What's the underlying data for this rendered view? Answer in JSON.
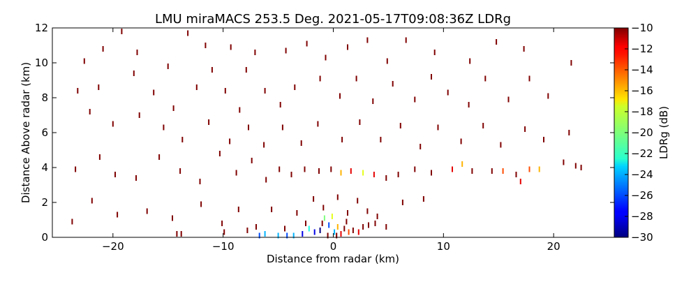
{
  "chart_data": {
    "type": "scatter",
    "title": "LMU miraMACS 253.5 Deg. 2021-05-17T09:08:36Z  LDRg",
    "xlabel": "Distance from radar (km)",
    "ylabel": "Distance Above radar  (km)",
    "xlim": [
      -25.5,
      25.5
    ],
    "ylim": [
      0,
      12
    ],
    "xticks": [
      -20,
      -10,
      0,
      10,
      20
    ],
    "xtick_labels": [
      "−20",
      "−10",
      "0",
      "10",
      "20"
    ],
    "yticks": [
      0,
      2,
      4,
      6,
      8,
      10,
      12
    ],
    "ytick_labels": [
      "0",
      "2",
      "4",
      "6",
      "8",
      "10",
      "12"
    ],
    "grid": false,
    "colorbar": {
      "label": "LDRg (dB)",
      "range": [
        -30,
        -10
      ],
      "ticks": [
        -30,
        -28,
        -26,
        -24,
        -22,
        -20,
        -18,
        -16,
        -14,
        -12,
        -10
      ],
      "tick_labels": [
        "−30",
        "−28",
        "−26",
        "−24",
        "−22",
        "−20",
        "−18",
        "−16",
        "−14",
        "−12",
        "−10"
      ],
      "colormap": "jet"
    },
    "points": [
      {
        "x": -19.2,
        "y": 11.8,
        "v": -10
      },
      {
        "x": -20.9,
        "y": 10.8,
        "v": -10
      },
      {
        "x": -22.6,
        "y": 10.1,
        "v": -10
      },
      {
        "x": -17.8,
        "y": 10.6,
        "v": -10
      },
      {
        "x": -15.0,
        "y": 9.8,
        "v": -10
      },
      {
        "x": -13.2,
        "y": 11.7,
        "v": -10
      },
      {
        "x": -11.6,
        "y": 11.0,
        "v": -10
      },
      {
        "x": -9.3,
        "y": 10.9,
        "v": -10
      },
      {
        "x": -7.1,
        "y": 10.6,
        "v": -10
      },
      {
        "x": -4.3,
        "y": 10.7,
        "v": -10
      },
      {
        "x": -2.4,
        "y": 11.1,
        "v": -10
      },
      {
        "x": -0.7,
        "y": 10.3,
        "v": -10
      },
      {
        "x": 1.3,
        "y": 10.9,
        "v": -10
      },
      {
        "x": 3.1,
        "y": 11.3,
        "v": -10
      },
      {
        "x": 4.9,
        "y": 10.1,
        "v": -10
      },
      {
        "x": 6.6,
        "y": 11.3,
        "v": -10
      },
      {
        "x": 9.2,
        "y": 10.6,
        "v": -10
      },
      {
        "x": 12.4,
        "y": 10.1,
        "v": -10
      },
      {
        "x": 14.8,
        "y": 11.2,
        "v": -10
      },
      {
        "x": 17.3,
        "y": 10.8,
        "v": -10
      },
      {
        "x": 21.6,
        "y": 10.0,
        "v": -10
      },
      {
        "x": -23.2,
        "y": 8.4,
        "v": -10
      },
      {
        "x": -21.3,
        "y": 8.6,
        "v": -10
      },
      {
        "x": -18.1,
        "y": 9.4,
        "v": -10
      },
      {
        "x": -16.3,
        "y": 8.3,
        "v": -10
      },
      {
        "x": -14.5,
        "y": 7.4,
        "v": -10
      },
      {
        "x": -12.4,
        "y": 8.6,
        "v": -10
      },
      {
        "x": -11.0,
        "y": 9.6,
        "v": -10
      },
      {
        "x": -9.8,
        "y": 8.4,
        "v": -10
      },
      {
        "x": -8.5,
        "y": 7.3,
        "v": -10
      },
      {
        "x": -7.9,
        "y": 9.6,
        "v": -10
      },
      {
        "x": -6.2,
        "y": 8.4,
        "v": -10
      },
      {
        "x": -4.8,
        "y": 7.6,
        "v": -10
      },
      {
        "x": -3.5,
        "y": 8.6,
        "v": -10
      },
      {
        "x": -1.2,
        "y": 9.1,
        "v": -10
      },
      {
        "x": 0.6,
        "y": 8.1,
        "v": -10
      },
      {
        "x": 2.1,
        "y": 9.1,
        "v": -10
      },
      {
        "x": 3.6,
        "y": 7.8,
        "v": -10
      },
      {
        "x": 5.4,
        "y": 8.8,
        "v": -10
      },
      {
        "x": 7.4,
        "y": 7.9,
        "v": -10
      },
      {
        "x": 8.9,
        "y": 9.2,
        "v": -10
      },
      {
        "x": 10.4,
        "y": 8.3,
        "v": -10
      },
      {
        "x": 12.3,
        "y": 7.6,
        "v": -10
      },
      {
        "x": 13.8,
        "y": 9.1,
        "v": -10
      },
      {
        "x": 15.9,
        "y": 7.9,
        "v": -10
      },
      {
        "x": 17.8,
        "y": 9.1,
        "v": -10
      },
      {
        "x": 19.5,
        "y": 8.1,
        "v": -10
      },
      {
        "x": -22.1,
        "y": 7.2,
        "v": -10
      },
      {
        "x": -20.0,
        "y": 6.5,
        "v": -10
      },
      {
        "x": -17.6,
        "y": 7.0,
        "v": -10
      },
      {
        "x": -15.4,
        "y": 6.3,
        "v": -10
      },
      {
        "x": -13.7,
        "y": 5.6,
        "v": -10
      },
      {
        "x": -11.3,
        "y": 6.6,
        "v": -10
      },
      {
        "x": -9.4,
        "y": 5.5,
        "v": -10
      },
      {
        "x": -7.7,
        "y": 6.3,
        "v": -10
      },
      {
        "x": -6.3,
        "y": 5.3,
        "v": -10
      },
      {
        "x": -4.6,
        "y": 6.3,
        "v": -10
      },
      {
        "x": -2.9,
        "y": 5.4,
        "v": -10
      },
      {
        "x": -1.4,
        "y": 6.5,
        "v": -10
      },
      {
        "x": 0.8,
        "y": 5.6,
        "v": -10
      },
      {
        "x": 2.4,
        "y": 6.6,
        "v": -10
      },
      {
        "x": 4.3,
        "y": 5.6,
        "v": -10
      },
      {
        "x": 6.1,
        "y": 6.4,
        "v": -10
      },
      {
        "x": 7.9,
        "y": 5.2,
        "v": -10
      },
      {
        "x": 9.5,
        "y": 6.3,
        "v": -10
      },
      {
        "x": 11.6,
        "y": 5.5,
        "v": -10
      },
      {
        "x": 13.6,
        "y": 6.4,
        "v": -10
      },
      {
        "x": 15.2,
        "y": 5.3,
        "v": -10
      },
      {
        "x": 17.4,
        "y": 6.2,
        "v": -10
      },
      {
        "x": 19.1,
        "y": 5.6,
        "v": -10
      },
      {
        "x": 21.4,
        "y": 6.0,
        "v": -10
      },
      {
        "x": -23.4,
        "y": 3.9,
        "v": -10
      },
      {
        "x": -21.2,
        "y": 4.6,
        "v": -10
      },
      {
        "x": -19.8,
        "y": 3.6,
        "v": -10
      },
      {
        "x": -17.9,
        "y": 3.4,
        "v": -10
      },
      {
        "x": -15.8,
        "y": 4.6,
        "v": -10
      },
      {
        "x": -13.9,
        "y": 3.8,
        "v": -10
      },
      {
        "x": -12.1,
        "y": 3.2,
        "v": -10
      },
      {
        "x": -10.3,
        "y": 4.8,
        "v": -10
      },
      {
        "x": -8.8,
        "y": 3.7,
        "v": -10
      },
      {
        "x": -7.4,
        "y": 4.4,
        "v": -10
      },
      {
        "x": -6.1,
        "y": 3.3,
        "v": -10
      },
      {
        "x": -4.9,
        "y": 3.9,
        "v": -10
      },
      {
        "x": -3.8,
        "y": 3.6,
        "v": -10
      },
      {
        "x": -2.6,
        "y": 3.9,
        "v": -10
      },
      {
        "x": -1.3,
        "y": 3.8,
        "v": -10
      },
      {
        "x": -0.2,
        "y": 3.9,
        "v": -10
      },
      {
        "x": 0.7,
        "y": 3.7,
        "v": -16
      },
      {
        "x": 1.6,
        "y": 3.8,
        "v": -12
      },
      {
        "x": 2.7,
        "y": 3.7,
        "v": -18
      },
      {
        "x": 3.7,
        "y": 3.6,
        "v": -12
      },
      {
        "x": 4.8,
        "y": 3.4,
        "v": -10
      },
      {
        "x": 5.9,
        "y": 3.6,
        "v": -10
      },
      {
        "x": 7.4,
        "y": 3.9,
        "v": -10
      },
      {
        "x": 8.9,
        "y": 3.7,
        "v": -10
      },
      {
        "x": 10.8,
        "y": 3.9,
        "v": -12
      },
      {
        "x": 11.7,
        "y": 4.2,
        "v": -16
      },
      {
        "x": 12.6,
        "y": 3.8,
        "v": -10
      },
      {
        "x": 14.4,
        "y": 3.8,
        "v": -10
      },
      {
        "x": 15.4,
        "y": 3.8,
        "v": -14
      },
      {
        "x": 16.6,
        "y": 3.6,
        "v": -10
      },
      {
        "x": 17.0,
        "y": 3.2,
        "v": -12
      },
      {
        "x": 17.8,
        "y": 3.9,
        "v": -14
      },
      {
        "x": 18.7,
        "y": 3.9,
        "v": -16
      },
      {
        "x": 20.9,
        "y": 4.3,
        "v": -10
      },
      {
        "x": 22.0,
        "y": 4.1,
        "v": -10
      },
      {
        "x": 22.5,
        "y": 4.0,
        "v": -10
      },
      {
        "x": -23.7,
        "y": 0.9,
        "v": -10
      },
      {
        "x": -21.9,
        "y": 2.1,
        "v": -10
      },
      {
        "x": -19.6,
        "y": 1.3,
        "v": -10
      },
      {
        "x": -16.9,
        "y": 1.5,
        "v": -10
      },
      {
        "x": -14.6,
        "y": 1.1,
        "v": -10
      },
      {
        "x": -12.0,
        "y": 1.9,
        "v": -10
      },
      {
        "x": -10.1,
        "y": 0.8,
        "v": -10
      },
      {
        "x": -8.6,
        "y": 1.6,
        "v": -10
      },
      {
        "x": -7.0,
        "y": 0.6,
        "v": -10
      },
      {
        "x": -5.6,
        "y": 1.6,
        "v": -10
      },
      {
        "x": -4.4,
        "y": 0.5,
        "v": -10
      },
      {
        "x": -3.3,
        "y": 1.4,
        "v": -10
      },
      {
        "x": -2.5,
        "y": 0.8,
        "v": -10
      },
      {
        "x": -1.8,
        "y": 2.2,
        "v": -10
      },
      {
        "x": -0.9,
        "y": 1.7,
        "v": -10
      },
      {
        "x": 0.4,
        "y": 2.3,
        "v": -10
      },
      {
        "x": 1.3,
        "y": 1.4,
        "v": -10
      },
      {
        "x": 2.2,
        "y": 2.1,
        "v": -10
      },
      {
        "x": 3.1,
        "y": 1.5,
        "v": -10
      },
      {
        "x": 4.0,
        "y": 1.2,
        "v": -10
      },
      {
        "x": 4.8,
        "y": 0.6,
        "v": -10
      },
      {
        "x": 6.3,
        "y": 2.0,
        "v": -10
      },
      {
        "x": 8.2,
        "y": 2.2,
        "v": -10
      },
      {
        "x": -6.7,
        "y": 0.1,
        "v": -26
      },
      {
        "x": -6.2,
        "y": 0.2,
        "v": -24
      },
      {
        "x": -5.0,
        "y": 0.1,
        "v": -24
      },
      {
        "x": -4.2,
        "y": 0.1,
        "v": -26
      },
      {
        "x": -3.6,
        "y": 0.1,
        "v": -24
      },
      {
        "x": -2.8,
        "y": 0.2,
        "v": -28
      },
      {
        "x": -2.2,
        "y": 0.5,
        "v": -22
      },
      {
        "x": -1.7,
        "y": 0.3,
        "v": -28
      },
      {
        "x": -1.2,
        "y": 0.4,
        "v": -30
      },
      {
        "x": -0.8,
        "y": 1.1,
        "v": -20
      },
      {
        "x": -0.4,
        "y": 0.7,
        "v": -26
      },
      {
        "x": -0.1,
        "y": 1.2,
        "v": -18
      },
      {
        "x": 0.1,
        "y": 0.3,
        "v": -24
      },
      {
        "x": 0.4,
        "y": 0.6,
        "v": -16
      },
      {
        "x": 0.7,
        "y": 0.2,
        "v": -12
      },
      {
        "x": 1.0,
        "y": 0.5,
        "v": -10
      },
      {
        "x": 1.4,
        "y": 0.3,
        "v": -14
      },
      {
        "x": 1.8,
        "y": 0.4,
        "v": -10
      },
      {
        "x": 2.3,
        "y": 0.3,
        "v": -12
      },
      {
        "x": 2.7,
        "y": 0.6,
        "v": -10
      },
      {
        "x": 3.2,
        "y": 0.7,
        "v": -10
      },
      {
        "x": 3.8,
        "y": 0.8,
        "v": -10
      },
      {
        "x": -0.5,
        "y": 0.1,
        "v": -10
      },
      {
        "x": 0.3,
        "y": 0.1,
        "v": -10
      },
      {
        "x": -1.0,
        "y": 0.8,
        "v": -10
      },
      {
        "x": 1.2,
        "y": 0.9,
        "v": -10
      },
      {
        "x": -13.8,
        "y": 0.2,
        "v": -10
      },
      {
        "x": -14.2,
        "y": 0.2,
        "v": -10
      },
      {
        "x": -9.9,
        "y": 0.3,
        "v": -10
      },
      {
        "x": -7.8,
        "y": 0.4,
        "v": -10
      }
    ]
  }
}
